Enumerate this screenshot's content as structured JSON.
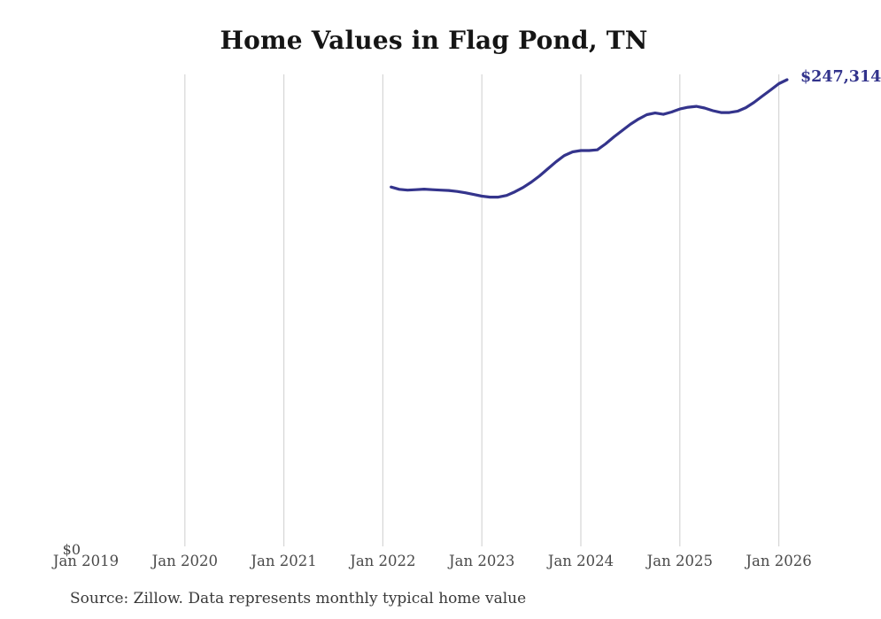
{
  "chart_data": {
    "type": "line",
    "title": "Home Values in Flag Pond, TN",
    "source": "Source: Zillow. Data represents monthly typical home value",
    "end_label": "$247,314",
    "grid": "vertical-only",
    "legend": "none",
    "colors": {
      "line": "#34348c",
      "end_label": "#32338c",
      "gridline": "#d6d6d6",
      "axis_text": "#4a4a4a",
      "title_text": "#151515"
    },
    "y_axis": {
      "zero_label": "$0",
      "min": 0,
      "max_plotted_value": 247314,
      "labels_visible": [
        "$0"
      ]
    },
    "x_axis": {
      "start": "Jan 2019",
      "end": "Feb 2026",
      "ticks": [
        {
          "label": "Jan 2019",
          "gridline": false
        },
        {
          "label": "Jan 2020",
          "gridline": true
        },
        {
          "label": "Jan 2021",
          "gridline": true
        },
        {
          "label": "Jan 2022",
          "gridline": true
        },
        {
          "label": "Jan 2023",
          "gridline": true
        },
        {
          "label": "Jan 2024",
          "gridline": true
        },
        {
          "label": "Jan 2025",
          "gridline": true
        },
        {
          "label": "Jan 2026",
          "gridline": true
        }
      ]
    },
    "series": [
      {
        "name": "Monthly typical home value",
        "color": "#34348c",
        "frequency": "monthly",
        "start_month": "2022-02",
        "end_month": "2026-02",
        "latest_value": 247314,
        "values": [
          190800,
          189600,
          189200,
          189400,
          189700,
          189400,
          189200,
          189000,
          188500,
          187800,
          186900,
          186000,
          185500,
          185500,
          186400,
          188300,
          190600,
          193400,
          196700,
          200400,
          204100,
          207400,
          209300,
          210000,
          210000,
          210400,
          213500,
          217200,
          220500,
          223800,
          226600,
          228900,
          229800,
          229100,
          230300,
          231900,
          232800,
          233300,
          232400,
          231000,
          230000,
          230000,
          230700,
          232600,
          235400,
          238700,
          241900,
          245200,
          247314
        ]
      }
    ]
  }
}
